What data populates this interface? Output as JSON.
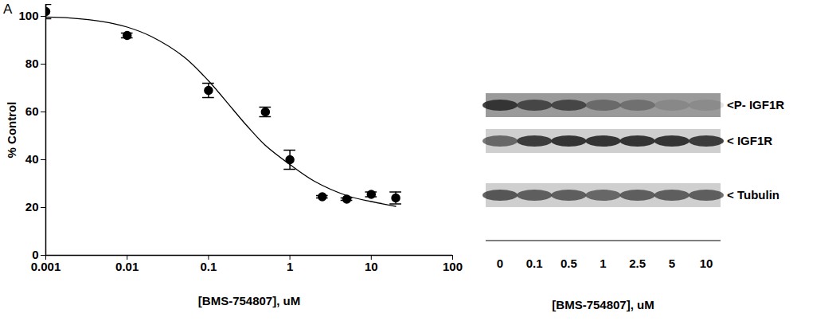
{
  "chart_data": {
    "type": "scatter",
    "panel_label": "A",
    "xlabel": "[BMS-754807], uM",
    "ylabel": "% Control",
    "log": "x",
    "xlim": [
      0.001,
      100
    ],
    "xticks": [
      0.001,
      0.01,
      0.1,
      1,
      10,
      100
    ],
    "ylim": [
      0,
      105
    ],
    "yticks": [
      0,
      20,
      40,
      60,
      80,
      100
    ],
    "grid": false,
    "series": [
      {
        "type": "scatter",
        "marker": "circle",
        "color": "#000000",
        "x": [
          0.001,
          0.01,
          0.1,
          0.5,
          1,
          2.5,
          5,
          10,
          20
        ],
        "values": [
          102,
          92,
          69,
          60,
          40,
          24.5,
          23.5,
          25.5,
          24
        ],
        "errors": [
          3,
          1,
          3,
          2,
          4,
          0.5,
          0.5,
          1,
          2.5
        ]
      },
      {
        "type": "line",
        "line_style": "solid",
        "color": "#000000",
        "x": [
          0.001,
          0.002,
          0.005,
          0.01,
          0.02,
          0.05,
          0.1,
          0.2,
          0.3,
          0.5,
          1,
          2,
          5,
          10,
          20
        ],
        "values": [
          99.7,
          99.3,
          97.8,
          95.5,
          91.5,
          83,
          73,
          61,
          54,
          46,
          38,
          31,
          25,
          22.5,
          20.5
        ]
      }
    ]
  },
  "blot": {
    "xlabel": "[BMS-754807], uM",
    "lanes": [
      "0",
      "0.1",
      "0.5",
      "1",
      "2.5",
      "5",
      "10"
    ],
    "bands": [
      {
        "label": "<P- IGF1R",
        "intensity": [
          0.85,
          0.7,
          0.7,
          0.4,
          0.35,
          0.15,
          0.12
        ]
      },
      {
        "label": "< IGF1R",
        "intensity": [
          0.6,
          0.85,
          0.9,
          0.9,
          0.9,
          0.9,
          0.85
        ]
      },
      {
        "label": "< Tubulin",
        "intensity": [
          0.7,
          0.65,
          0.65,
          0.6,
          0.65,
          0.65,
          0.65
        ]
      }
    ]
  }
}
